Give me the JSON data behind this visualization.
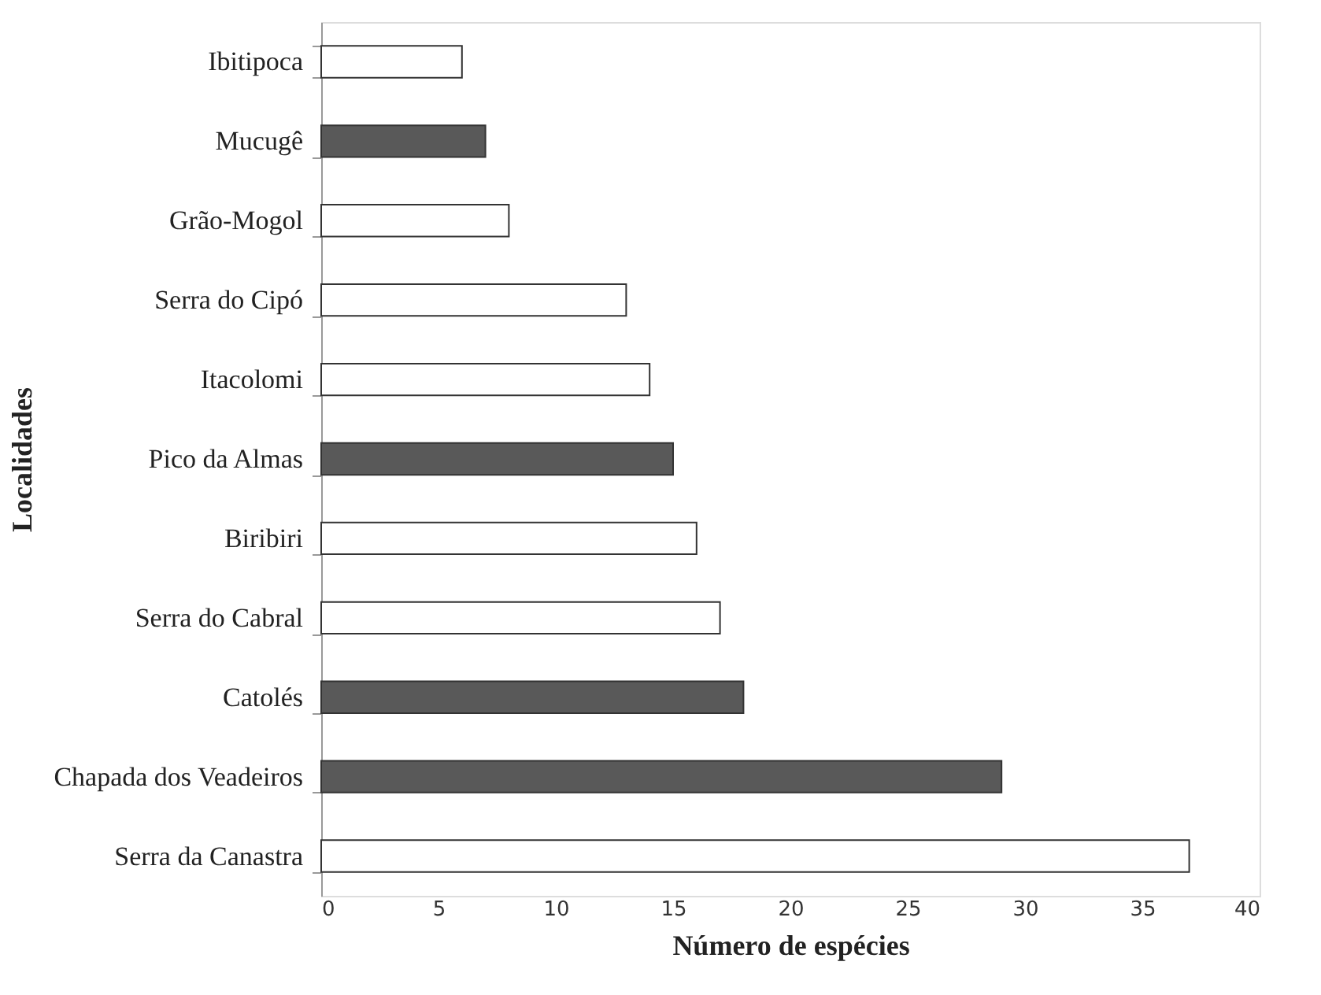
{
  "chart_data": {
    "type": "bar",
    "orientation": "horizontal",
    "categories": [
      "Ibitipoca",
      "Mucugê",
      "Grão-Mogol",
      "Serra do Cipó",
      "Itacolomi",
      "Pico da Almas",
      "Biribiri",
      "Serra do Cabral",
      "Catolés",
      "Chapada dos Veadeiros",
      "Serra da Canastra"
    ],
    "values": [
      6,
      7,
      8,
      13,
      14,
      15,
      16,
      17,
      18,
      29,
      37
    ],
    "colors": [
      "#ffffff",
      "#595959",
      "#ffffff",
      "#ffffff",
      "#ffffff",
      "#595959",
      "#ffffff",
      "#ffffff",
      "#595959",
      "#595959",
      "#ffffff"
    ],
    "xlim": [
      0,
      40
    ],
    "xticks": [
      0,
      5,
      10,
      15,
      20,
      25,
      30,
      35,
      40
    ],
    "xlabel": "Número de espécies",
    "ylabel": "Localidades",
    "grid": false
  }
}
